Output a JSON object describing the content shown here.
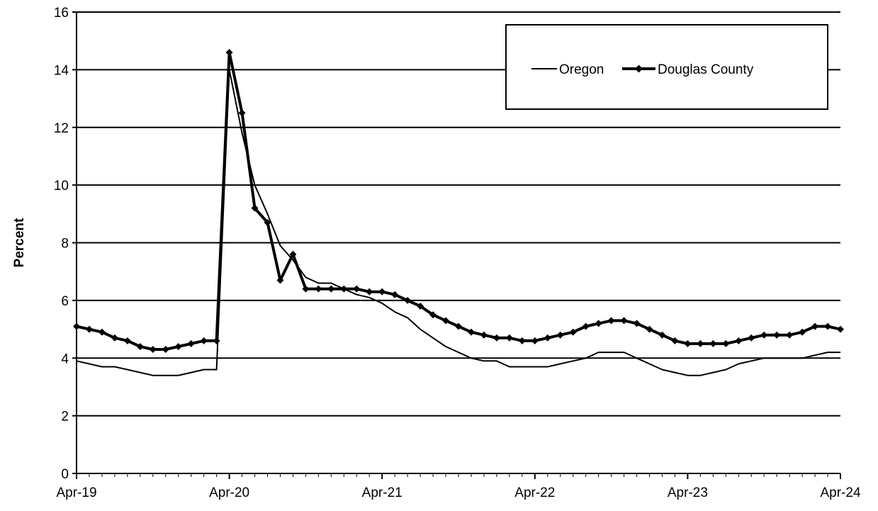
{
  "chart_data": {
    "type": "line",
    "title": "",
    "xlabel": "",
    "ylabel": "Percent",
    "ylim": [
      0,
      16
    ],
    "yticks": [
      0,
      2,
      4,
      6,
      8,
      10,
      12,
      14,
      16
    ],
    "x_tick_labels": [
      "Apr-19",
      "Apr-20",
      "Apr-21",
      "Apr-22",
      "Apr-23",
      "Apr-24"
    ],
    "x_range": [
      "2019-04",
      "2024-04"
    ],
    "grid": "horizontal",
    "legend_position": "top-right",
    "series": [
      {
        "name": "Oregon",
        "color": "#000000",
        "marker": "none",
        "x": [
          "2019-04",
          "2019-05",
          "2019-06",
          "2019-07",
          "2019-08",
          "2019-09",
          "2019-10",
          "2019-11",
          "2019-12",
          "2020-01",
          "2020-02",
          "2020-03",
          "2020-04",
          "2020-05",
          "2020-06",
          "2020-07",
          "2020-08",
          "2020-09",
          "2020-10",
          "2020-11",
          "2020-12",
          "2021-01",
          "2021-02",
          "2021-03",
          "2021-04",
          "2021-05",
          "2021-06",
          "2021-07",
          "2021-08",
          "2021-09",
          "2021-10",
          "2021-11",
          "2021-12",
          "2022-01",
          "2022-02",
          "2022-03",
          "2022-04",
          "2022-05",
          "2022-06",
          "2022-07",
          "2022-08",
          "2022-09",
          "2022-10",
          "2022-11",
          "2022-12",
          "2023-01",
          "2023-02",
          "2023-03",
          "2023-04",
          "2023-05",
          "2023-06",
          "2023-07",
          "2023-08",
          "2023-09",
          "2023-10",
          "2023-11",
          "2023-12",
          "2024-01",
          "2024-02",
          "2024-03",
          "2024-04"
        ],
        "values": [
          3.9,
          3.8,
          3.7,
          3.7,
          3.6,
          3.5,
          3.4,
          3.4,
          3.4,
          3.5,
          3.6,
          3.6,
          14.0,
          11.8,
          10.0,
          9.0,
          7.9,
          7.4,
          6.8,
          6.6,
          6.6,
          6.4,
          6.2,
          6.1,
          5.9,
          5.6,
          5.4,
          5.0,
          4.7,
          4.4,
          4.2,
          4.0,
          3.9,
          3.9,
          3.7,
          3.7,
          3.7,
          3.7,
          3.8,
          3.9,
          4.0,
          4.2,
          4.2,
          4.2,
          4.0,
          3.8,
          3.6,
          3.5,
          3.4,
          3.4,
          3.5,
          3.6,
          3.8,
          3.9,
          4.0,
          4.0,
          4.0,
          4.0,
          4.1,
          4.2,
          4.2
        ]
      },
      {
        "name": "Douglas County",
        "color": "#000000",
        "marker": "diamond",
        "x": [
          "2019-04",
          "2019-05",
          "2019-06",
          "2019-07",
          "2019-08",
          "2019-09",
          "2019-10",
          "2019-11",
          "2019-12",
          "2020-01",
          "2020-02",
          "2020-03",
          "2020-04",
          "2020-05",
          "2020-06",
          "2020-07",
          "2020-08",
          "2020-09",
          "2020-10",
          "2020-11",
          "2020-12",
          "2021-01",
          "2021-02",
          "2021-03",
          "2021-04",
          "2021-05",
          "2021-06",
          "2021-07",
          "2021-08",
          "2021-09",
          "2021-10",
          "2021-11",
          "2021-12",
          "2022-01",
          "2022-02",
          "2022-03",
          "2022-04",
          "2022-05",
          "2022-06",
          "2022-07",
          "2022-08",
          "2022-09",
          "2022-10",
          "2022-11",
          "2022-12",
          "2023-01",
          "2023-02",
          "2023-03",
          "2023-04",
          "2023-05",
          "2023-06",
          "2023-07",
          "2023-08",
          "2023-09",
          "2023-10",
          "2023-11",
          "2023-12",
          "2024-01",
          "2024-02",
          "2024-03",
          "2024-04"
        ],
        "values": [
          5.1,
          5.0,
          4.9,
          4.7,
          4.6,
          4.4,
          4.3,
          4.3,
          4.4,
          4.5,
          4.6,
          4.6,
          14.6,
          12.5,
          9.2,
          8.7,
          6.7,
          7.6,
          6.4,
          6.4,
          6.4,
          6.4,
          6.4,
          6.3,
          6.3,
          6.2,
          6.0,
          5.8,
          5.5,
          5.3,
          5.1,
          4.9,
          4.8,
          4.7,
          4.7,
          4.6,
          4.6,
          4.7,
          4.8,
          4.9,
          5.1,
          5.2,
          5.3,
          5.3,
          5.2,
          5.0,
          4.8,
          4.6,
          4.5,
          4.5,
          4.5,
          4.5,
          4.6,
          4.7,
          4.8,
          4.8,
          4.8,
          4.9,
          5.1,
          5.1,
          5.0
        ]
      }
    ]
  }
}
